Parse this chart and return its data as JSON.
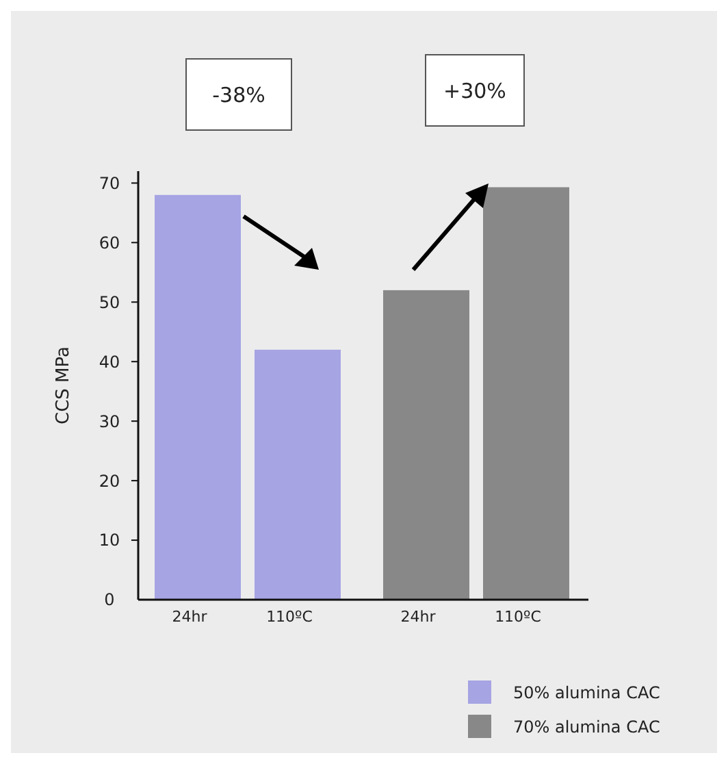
{
  "chart_data": {
    "type": "bar",
    "ylabel": "CCS MPa",
    "categories": [
      "24hr",
      "110ºC",
      "24hr",
      "110ºC"
    ],
    "series": [
      {
        "name": "50% alumina CAC",
        "color": "#a6a4e3",
        "values": [
          68,
          42,
          null,
          null
        ]
      },
      {
        "name": "70% alumina CAC",
        "color": "#888888",
        "values": [
          null,
          null,
          52,
          69.3
        ]
      }
    ],
    "ylim": [
      0,
      72
    ],
    "yticks": [
      0,
      10,
      20,
      30,
      40,
      50,
      60,
      70
    ],
    "annotations": [
      "-38%",
      "+30%"
    ],
    "legend": "bottom right",
    "grid": false
  }
}
